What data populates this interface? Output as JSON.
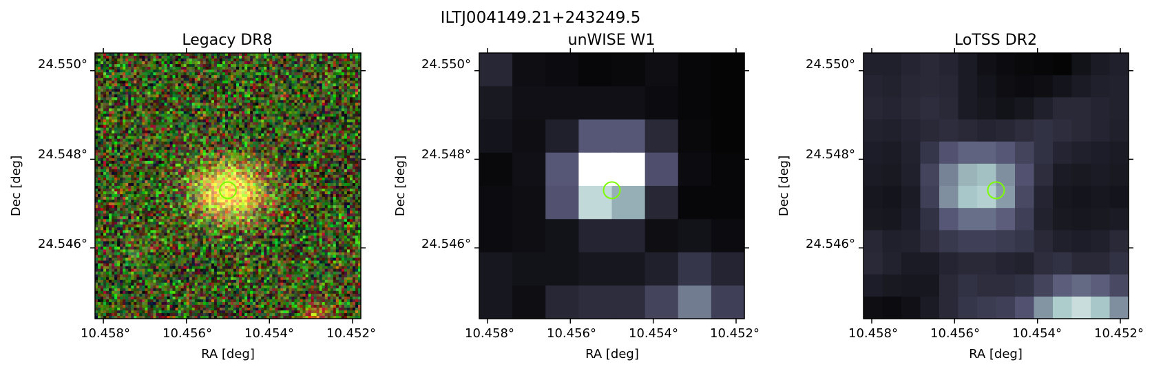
{
  "figure": {
    "title": "ILTJ004149.21+243249.5"
  },
  "chart_data": [
    {
      "type": "heatmap",
      "title": "Legacy DR8",
      "xlabel": "RA [deg]",
      "ylabel": "Dec [deg]",
      "x_tick_labels": [
        "10.458°",
        "10.456°",
        "10.454°",
        "10.452°"
      ],
      "y_tick_labels": [
        "24.550°",
        "24.548°",
        "24.546°"
      ],
      "xlim": [
        10.4582,
        10.4518
      ],
      "ylim": [
        24.5444,
        24.5504
      ],
      "colormap": "rgb-composite",
      "marker": {
        "ra": 10.455,
        "dec": 24.5473,
        "shape": "circle",
        "color": "#7cfc00"
      }
    },
    {
      "type": "heatmap",
      "title": "unWISE W1",
      "xlabel": "RA [deg]",
      "ylabel": "Dec [deg]",
      "x_tick_labels": [
        "10.458°",
        "10.456°",
        "10.454°",
        "10.452°"
      ],
      "y_tick_labels": [
        "24.550°",
        "24.548°",
        "24.546°"
      ],
      "xlim": [
        10.4582,
        10.4518
      ],
      "ylim": [
        24.5444,
        24.5504
      ],
      "colormap": "bone",
      "grid_values": [
        [
          0.17,
          0.06,
          0.05,
          0.03,
          0.04,
          0.06,
          0.03,
          0.02
        ],
        [
          0.11,
          0.07,
          0.07,
          0.07,
          0.07,
          0.05,
          0.03,
          0.02
        ],
        [
          0.09,
          0.06,
          0.14,
          0.38,
          0.38,
          0.18,
          0.04,
          0.02
        ],
        [
          0.04,
          0.07,
          0.38,
          1.0,
          1.0,
          0.35,
          0.05,
          0.03
        ],
        [
          0.05,
          0.06,
          0.36,
          0.82,
          0.66,
          0.17,
          0.03,
          0.03
        ],
        [
          0.05,
          0.06,
          0.08,
          0.16,
          0.16,
          0.06,
          0.08,
          0.05
        ],
        [
          0.1,
          0.08,
          0.08,
          0.1,
          0.1,
          0.14,
          0.24,
          0.16
        ],
        [
          0.1,
          0.06,
          0.17,
          0.2,
          0.2,
          0.3,
          0.5,
          0.28
        ]
      ],
      "marker": {
        "ra": 10.455,
        "dec": 24.5473,
        "shape": "circle",
        "color": "#7cfc00"
      }
    },
    {
      "type": "heatmap",
      "title": "LoTSS DR2",
      "xlabel": "RA [deg]",
      "ylabel": "Dec [deg]",
      "x_tick_labels": [
        "10.458°",
        "10.456°",
        "10.454°",
        "10.452°"
      ],
      "y_tick_labels": [
        "24.550°",
        "24.548°",
        "24.546°"
      ],
      "xlim": [
        10.4582,
        10.4518
      ],
      "ylim": [
        24.5444,
        24.5504
      ],
      "colormap": "bone",
      "grid_values": [
        [
          0.14,
          0.14,
          0.16,
          0.18,
          0.16,
          0.12,
          0.07,
          0.05,
          0.04,
          0.03,
          0.02,
          0.08,
          0.12,
          0.14
        ],
        [
          0.16,
          0.15,
          0.17,
          0.18,
          0.17,
          0.12,
          0.09,
          0.06,
          0.05,
          0.06,
          0.09,
          0.12,
          0.14,
          0.15
        ],
        [
          0.17,
          0.16,
          0.18,
          0.2,
          0.18,
          0.12,
          0.1,
          0.08,
          0.1,
          0.14,
          0.18,
          0.18,
          0.16,
          0.15
        ],
        [
          0.15,
          0.14,
          0.16,
          0.18,
          0.2,
          0.18,
          0.16,
          0.17,
          0.2,
          0.22,
          0.2,
          0.18,
          0.16,
          0.14
        ],
        [
          0.13,
          0.12,
          0.15,
          0.24,
          0.36,
          0.42,
          0.42,
          0.38,
          0.3,
          0.22,
          0.16,
          0.14,
          0.13,
          0.12
        ],
        [
          0.12,
          0.11,
          0.14,
          0.3,
          0.52,
          0.68,
          0.72,
          0.56,
          0.36,
          0.2,
          0.12,
          0.11,
          0.12,
          0.11
        ],
        [
          0.1,
          0.09,
          0.12,
          0.28,
          0.56,
          0.74,
          0.78,
          0.6,
          0.32,
          0.16,
          0.1,
          0.09,
          0.1,
          0.09
        ],
        [
          0.11,
          0.1,
          0.13,
          0.22,
          0.38,
          0.46,
          0.46,
          0.4,
          0.28,
          0.15,
          0.11,
          0.1,
          0.11,
          0.12
        ],
        [
          0.17,
          0.14,
          0.15,
          0.2,
          0.25,
          0.28,
          0.28,
          0.26,
          0.24,
          0.18,
          0.14,
          0.13,
          0.14,
          0.18
        ],
        [
          0.18,
          0.15,
          0.12,
          0.12,
          0.16,
          0.18,
          0.18,
          0.16,
          0.15,
          0.2,
          0.22,
          0.18,
          0.18,
          0.22
        ],
        [
          0.13,
          0.11,
          0.1,
          0.1,
          0.18,
          0.22,
          0.2,
          0.2,
          0.22,
          0.3,
          0.4,
          0.44,
          0.4,
          0.32
        ],
        [
          0.06,
          0.05,
          0.07,
          0.12,
          0.18,
          0.24,
          0.26,
          0.28,
          0.36,
          0.58,
          0.76,
          0.84,
          0.74,
          0.56
        ]
      ],
      "marker": {
        "ra": 10.455,
        "dec": 24.5473,
        "shape": "circle",
        "color": "#7cfc00"
      }
    }
  ]
}
